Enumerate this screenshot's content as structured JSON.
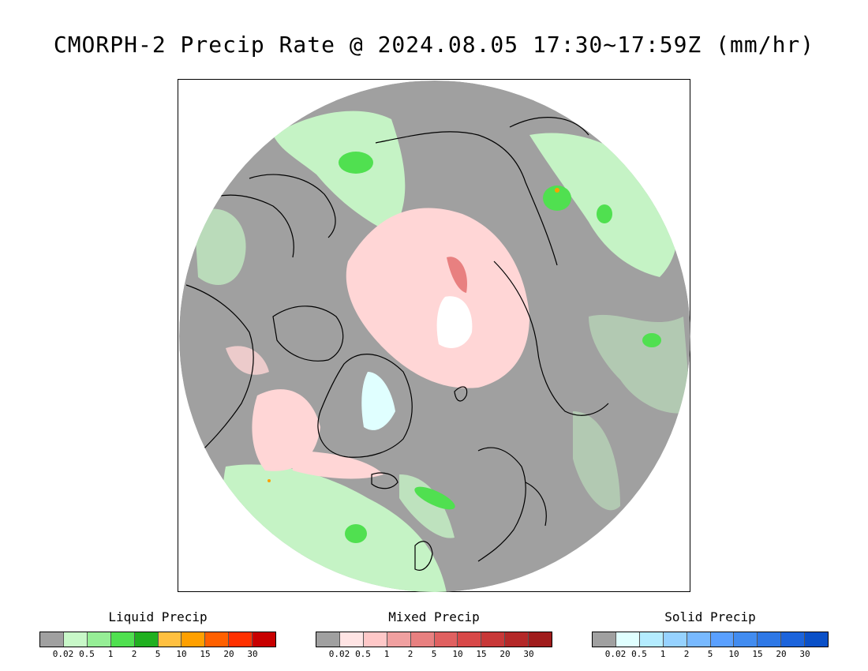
{
  "title": "CMORPH-2 Precip Rate @ 2024.08.05 17:30~17:59Z (mm/hr)",
  "legends": [
    {
      "title": "Liquid Precip",
      "ticks": [
        "0.02",
        "0.5",
        "1",
        "2",
        "5",
        "10",
        "15",
        "20",
        "30"
      ],
      "colors": [
        "#a0a0a0",
        "#c8f8c8",
        "#96ee96",
        "#50e050",
        "#20b020",
        "#ffc040",
        "#ffa000",
        "#ff6000",
        "#ff3000",
        "#c80000"
      ]
    },
    {
      "title": "Mixed Precip",
      "ticks": [
        "0.02",
        "0.5",
        "1",
        "2",
        "5",
        "10",
        "15",
        "20",
        "30"
      ],
      "colors": [
        "#a0a0a0",
        "#ffe4e4",
        "#ffc8c8",
        "#f0a0a0",
        "#e88080",
        "#e06060",
        "#d84848",
        "#c83838",
        "#b42828",
        "#a01c1c"
      ]
    },
    {
      "title": "Solid Precip",
      "ticks": [
        "0.02",
        "0.5",
        "1",
        "2",
        "5",
        "10",
        "15",
        "20",
        "30"
      ],
      "colors": [
        "#a0a0a0",
        "#e0ffff",
        "#b4ecff",
        "#96d2ff",
        "#78b9ff",
        "#5aa0ff",
        "#428cf0",
        "#2e78e6",
        "#1c64dc",
        "#0a50c8"
      ]
    }
  ],
  "map": {
    "background_color": "#a0a0a0",
    "coast_color": "#000000"
  }
}
